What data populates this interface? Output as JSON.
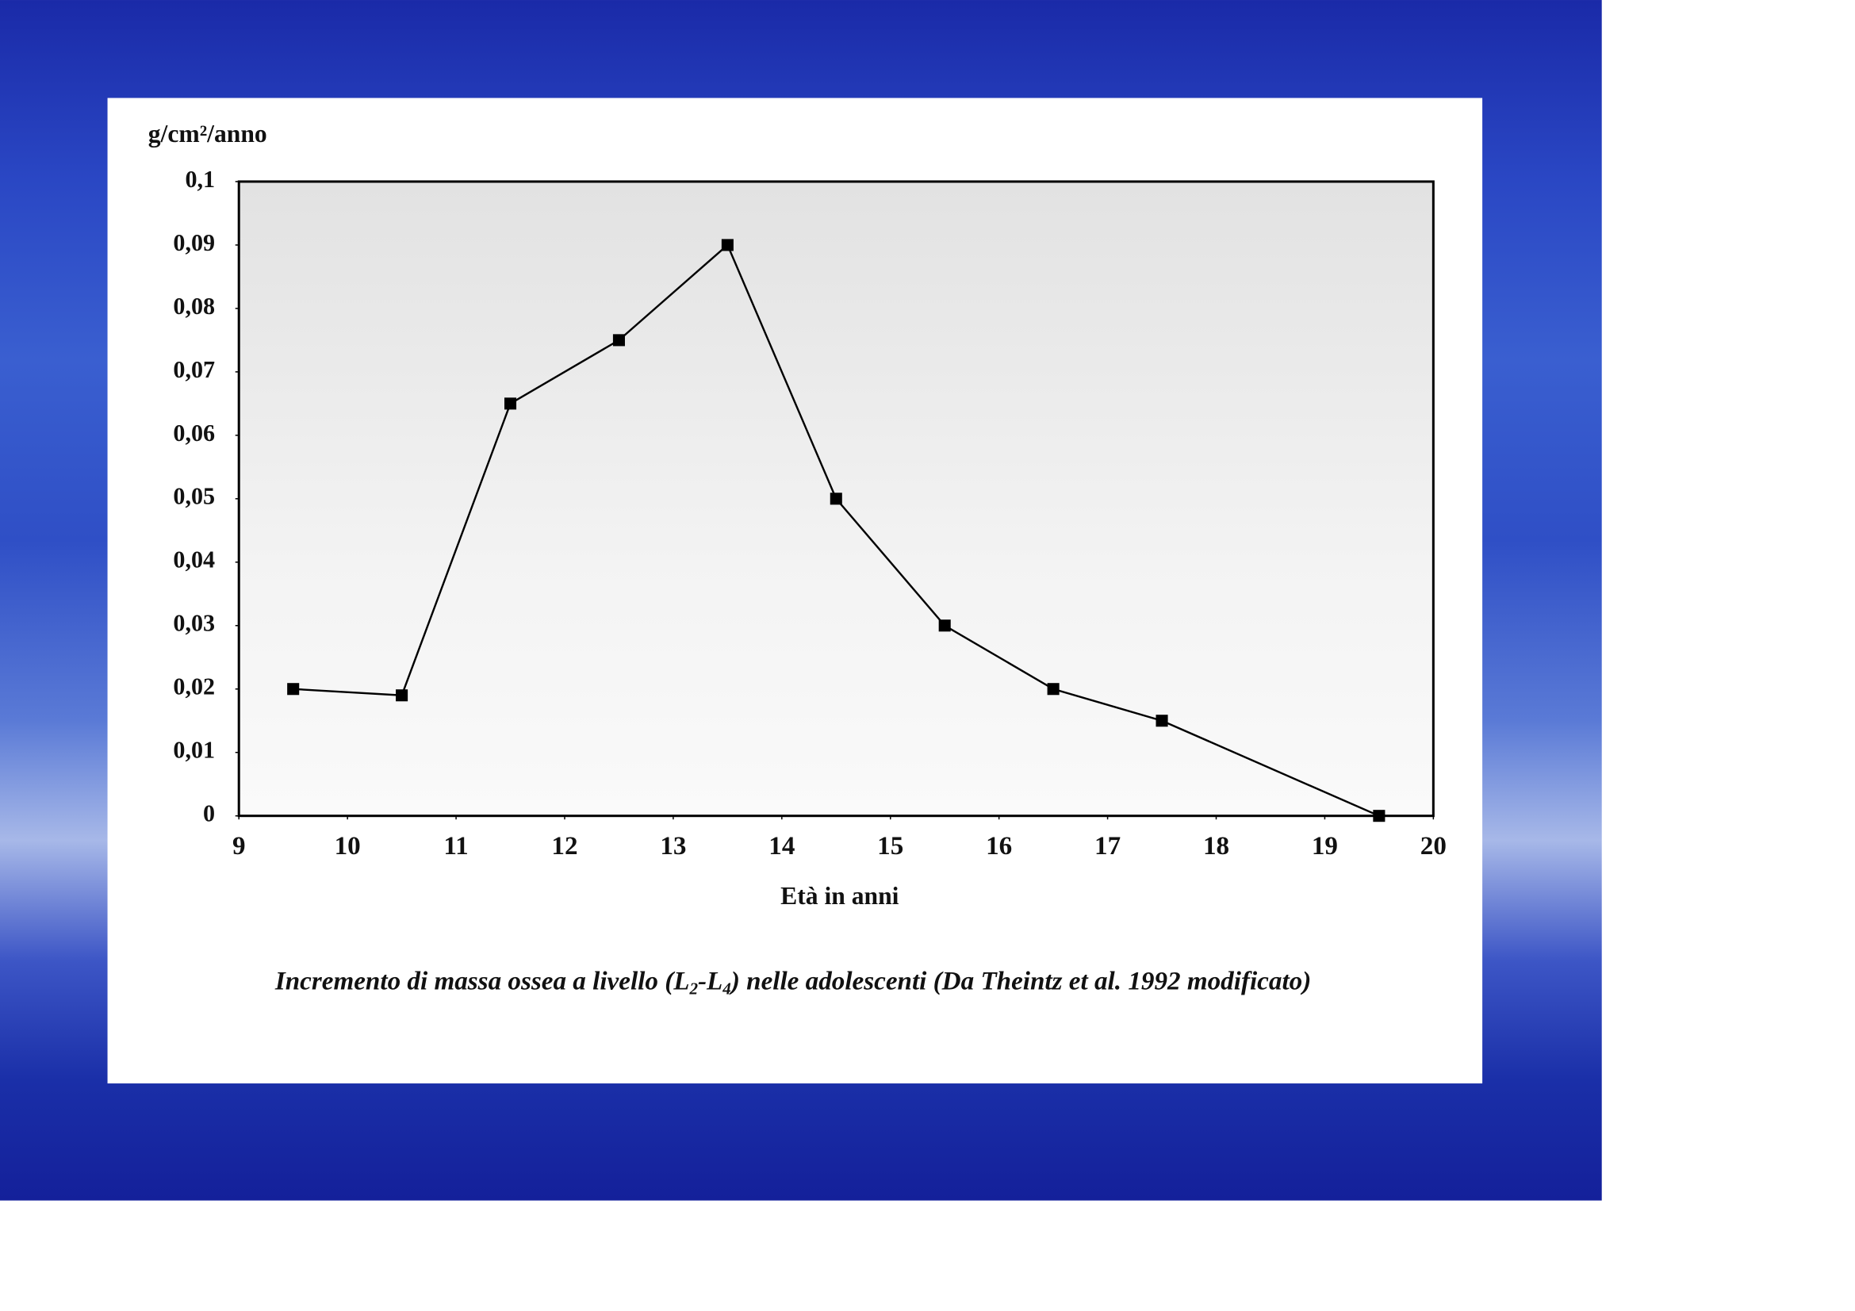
{
  "chart_data": {
    "type": "line",
    "y_label": "g/cm²/anno",
    "x_label": "Età in anni",
    "caption": [
      "Incremento di massa ossea a livello  (L",
      "2",
      "-L",
      "4",
      ") nelle adolescenti  (Da Theintz et al. 1992 modificato)"
    ],
    "x": [
      9.5,
      10.5,
      11.5,
      12.5,
      13.5,
      14.5,
      15.5,
      16.5,
      17.5,
      19.5
    ],
    "series": [
      {
        "color": "#000000",
        "values": [
          0.02,
          0.019,
          0.065,
          0.075,
          0.09,
          0.05,
          0.03,
          0.02,
          0.015,
          0
        ]
      }
    ],
    "xlim": [
      9,
      20
    ],
    "xticks": [
      9,
      10,
      11,
      12,
      13,
      14,
      15,
      16,
      17,
      18,
      19,
      20
    ],
    "ylim": [
      0,
      0.1
    ],
    "yticks": [
      0,
      {
        "value": 0.01,
        "label": "0,01"
      },
      {
        "value": 0.02,
        "label": "0,02"
      },
      {
        "value": 0.03,
        "label": "0,03"
      },
      {
        "value": 0.04,
        "label": "0,04"
      },
      {
        "value": 0.05,
        "label": "0,05"
      },
      {
        "value": 0.06,
        "label": "0,06"
      },
      {
        "value": 0.07,
        "label": "0,07"
      },
      {
        "value": 0.08,
        "label": "0,08"
      },
      {
        "value": 0.09,
        "label": "0,09"
      },
      {
        "value": 0.1,
        "label": "0,1"
      }
    ]
  }
}
